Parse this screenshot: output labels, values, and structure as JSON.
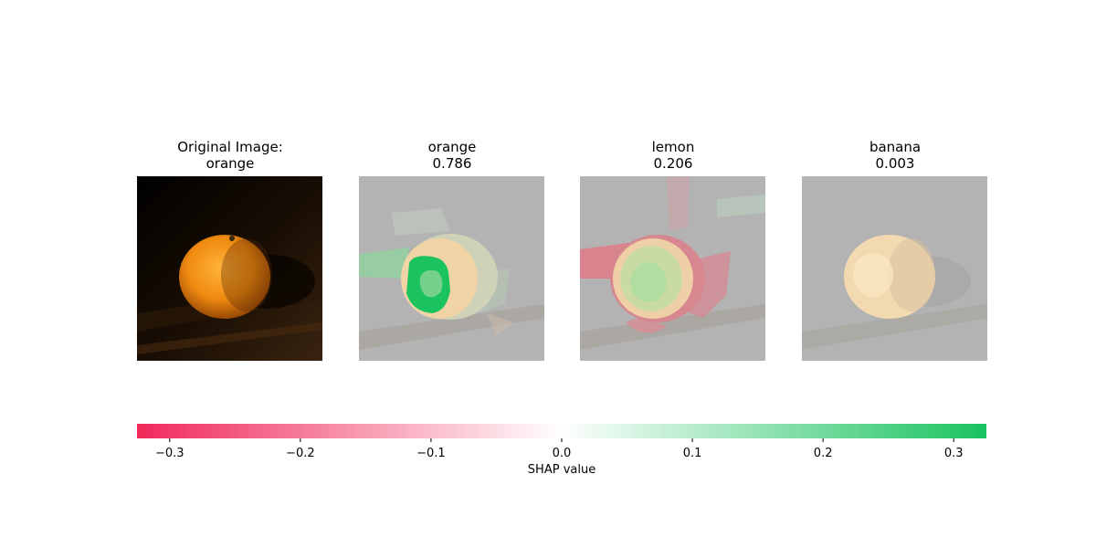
{
  "panels": [
    {
      "title_line1": "Original Image:",
      "title_line2": "orange"
    },
    {
      "title_line1": "orange",
      "title_line2": "0.786"
    },
    {
      "title_line1": "lemon",
      "title_line2": "0.206"
    },
    {
      "title_line1": "banana",
      "title_line2": "0.003"
    }
  ],
  "colorbar": {
    "label": "SHAP value",
    "min": -0.325,
    "max": 0.325,
    "ticks": [
      {
        "value": -0.3,
        "label": "−0.3"
      },
      {
        "value": -0.2,
        "label": "−0.2"
      },
      {
        "value": -0.1,
        "label": "−0.1"
      },
      {
        "value": 0.0,
        "label": "0.0"
      },
      {
        "value": 0.1,
        "label": "0.1"
      },
      {
        "value": 0.2,
        "label": "0.2"
      },
      {
        "value": 0.3,
        "label": "0.3"
      }
    ],
    "negative_color": "#f0285a",
    "positive_color": "#19c35f"
  },
  "chart_data": {
    "type": "heatmap",
    "title": "",
    "classes": [
      {
        "name": "orange",
        "score": 0.786
      },
      {
        "name": "lemon",
        "score": 0.206
      },
      {
        "name": "banana",
        "score": 0.003
      }
    ],
    "original_label": "orange",
    "colorbar_range": [
      -0.325,
      0.325
    ],
    "colorbar_label": "SHAP value"
  }
}
